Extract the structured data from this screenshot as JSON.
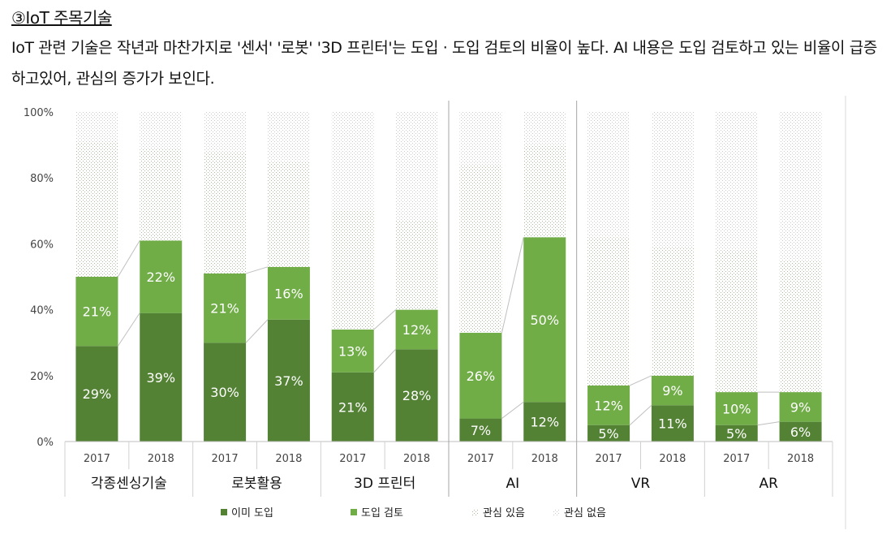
{
  "heading": "③IoT 주목기술",
  "description": "IoT 관련 기술은 작년과 마찬가지로 '센서' '로봇' '3D 프린터'는 도입 · 도입 검토의 비율이 높다. AI 내용은 도입 검토하고 있는 비율이 급증하고있어, 관심의 증가가 보인다.",
  "chart_data": {
    "type": "bar",
    "stacked": true,
    "ylim": [
      0,
      100
    ],
    "yticks": [
      "0%",
      "20%",
      "40%",
      "60%",
      "80%",
      "100%"
    ],
    "groups": [
      "각종센싱기술",
      "로봇활용",
      "3D 프린터",
      "AI",
      "VR",
      "AR"
    ],
    "years": [
      "2017",
      "2018"
    ],
    "categories": [
      "2017",
      "2018",
      "2017",
      "2018",
      "2017",
      "2018",
      "2017",
      "2018",
      "2017",
      "2018",
      "2017",
      "2018"
    ],
    "series": [
      {
        "name": "이미 도입",
        "color": "#548235",
        "values": [
          29,
          39,
          30,
          37,
          21,
          28,
          7,
          12,
          5,
          11,
          5,
          6
        ]
      },
      {
        "name": "도입 검토",
        "color": "#70ad47",
        "values": [
          21,
          22,
          21,
          16,
          13,
          12,
          26,
          50,
          12,
          9,
          10,
          9
        ]
      },
      {
        "name": "관심 있음",
        "values": [
          41,
          28,
          37,
          32,
          36,
          27,
          51,
          28,
          45,
          39,
          43,
          40
        ]
      },
      {
        "name": "관심 없음",
        "values": [
          9,
          11,
          12,
          15,
          30,
          33,
          16,
          10,
          38,
          41,
          42,
          45
        ]
      }
    ],
    "data_labels": [
      [
        "29%",
        "39%",
        "30%",
        "37%",
        "21%",
        "28%",
        "7%",
        "12%",
        "5%",
        "11%",
        "5%",
        "6%"
      ],
      [
        "21%",
        "22%",
        "21%",
        "16%",
        "13%",
        "12%",
        "26%",
        "50%",
        "12%",
        "9%",
        "10%",
        "9%"
      ]
    ],
    "legend_position": "bottom",
    "grid": false
  }
}
